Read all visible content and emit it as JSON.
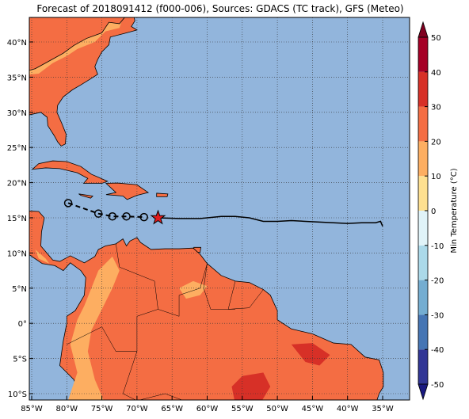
{
  "title": "Forecast of 2018091412 (f000-006), Sources: GDACS (TC track), GFS (Meteo)",
  "map": {
    "ocean_color": "#92b5dc",
    "lon_ticks": [
      {
        "value": -85,
        "label": "85°W"
      },
      {
        "value": -80,
        "label": "80°W"
      },
      {
        "value": -75,
        "label": "75°W"
      },
      {
        "value": -70,
        "label": "70°W"
      },
      {
        "value": -65,
        "label": "65°W"
      },
      {
        "value": -60,
        "label": "60°W"
      },
      {
        "value": -55,
        "label": "55°W"
      },
      {
        "value": -50,
        "label": "50°W"
      },
      {
        "value": -45,
        "label": "45°W"
      },
      {
        "value": -40,
        "label": "40°W"
      },
      {
        "value": -35,
        "label": "35°W"
      }
    ],
    "lat_ticks": [
      {
        "value": 40,
        "label": "40°N"
      },
      {
        "value": 35,
        "label": "35°N"
      },
      {
        "value": 30,
        "label": "30°N"
      },
      {
        "value": 25,
        "label": "25°N"
      },
      {
        "value": 20,
        "label": "20°N"
      },
      {
        "value": 15,
        "label": "15°N"
      },
      {
        "value": 10,
        "label": "10°N"
      },
      {
        "value": 5,
        "label": "5°N"
      },
      {
        "value": 0,
        "label": "0°"
      },
      {
        "value": -5,
        "label": "5°S"
      },
      {
        "value": -10,
        "label": "10°S"
      }
    ],
    "track_past": {
      "lon": [
        -79.8,
        -75.5,
        -73.5,
        -71.5,
        -69
      ],
      "lat": [
        17.1,
        15.6,
        15.2,
        15.2,
        15.1
      ]
    },
    "current": {
      "lon": -67,
      "lat": 15
    },
    "track_forecast": {
      "lon": [
        -67,
        -64,
        -61,
        -58,
        -56,
        -54,
        -52,
        -50,
        -48,
        -46,
        -44,
        -42,
        -40,
        -38,
        -36,
        -35.3,
        -35
      ],
      "lat": [
        15,
        14.9,
        14.9,
        15.2,
        15.2,
        15.0,
        14.5,
        14.5,
        14.6,
        14.5,
        14.4,
        14.3,
        14.2,
        14.3,
        14.3,
        14.5,
        13.8
      ]
    }
  },
  "colorbar": {
    "label": "Min Temperature (°C)",
    "levels": [
      -50,
      -40,
      -30,
      -20,
      -10,
      0,
      10,
      20,
      30,
      40,
      50
    ],
    "colors": [
      "#313695",
      "#4575b4",
      "#74add1",
      "#abd9e9",
      "#e0f3f8",
      "#fee090",
      "#fdae61",
      "#f46d43",
      "#d73027",
      "#a50026"
    ],
    "under_color": "#1a1a80",
    "over_color": "#800020",
    "ticks": [
      50,
      40,
      30,
      20,
      10,
      0,
      -10,
      -20,
      -30,
      -40,
      -50
    ]
  }
}
